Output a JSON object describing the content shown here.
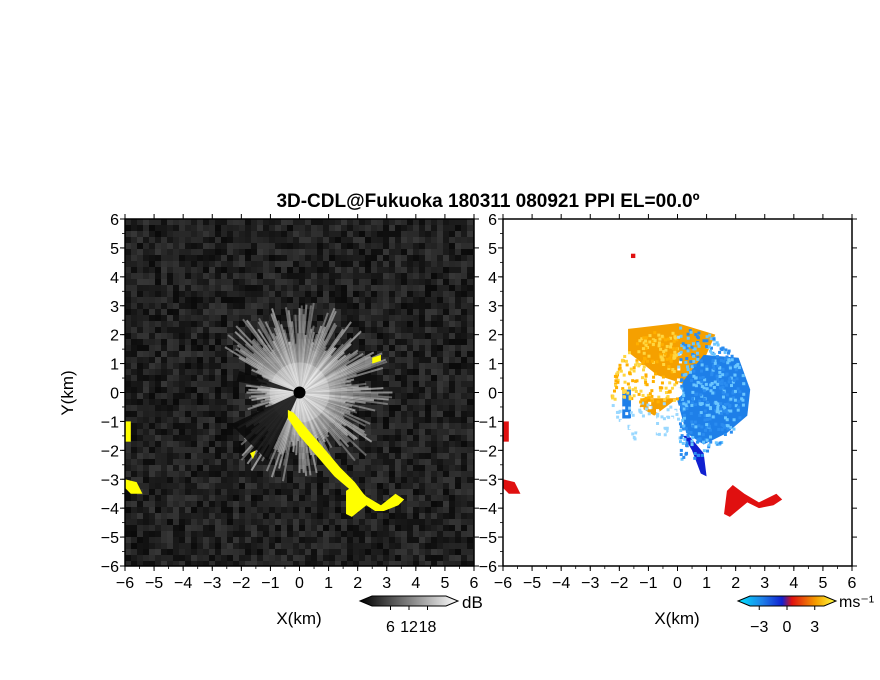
{
  "figure": {
    "title": "3D-CDL@Fukuoka 180311 080921 PPI EL=00.0º",
    "background": "#ffffff"
  },
  "chart_data": [
    {
      "type": "heatmap",
      "panel": "left",
      "quantity": "signal intensity",
      "xlabel": "X(km)",
      "ylabel": "Y(km)",
      "xlim": [
        -6,
        6
      ],
      "ylim": [
        -6,
        6
      ],
      "xticks": [
        -6,
        -5,
        -4,
        -3,
        -2,
        -1,
        0,
        1,
        2,
        3,
        4,
        5,
        6
      ],
      "yticks": [
        -6,
        -5,
        -4,
        -3,
        -2,
        -1,
        0,
        1,
        2,
        3,
        4,
        5,
        6
      ],
      "grid": false,
      "colors": {
        "background": "#1a1a1a",
        "highlight": "#ffff00",
        "center": "#000000"
      },
      "colorbar": {
        "unit": "dB",
        "ticks": [
          6,
          12,
          18
        ],
        "colormap": "grayscale",
        "placement": "bottom-right"
      },
      "highlight_regions": [
        {
          "name": "left-edge-upper",
          "points": [
            [
              -6.0,
              -1.0
            ],
            [
              -5.8,
              -1.0
            ],
            [
              -5.8,
              -1.7
            ],
            [
              -6.0,
              -1.7
            ]
          ]
        },
        {
          "name": "left-edge-lower",
          "points": [
            [
              -6.0,
              -3.0
            ],
            [
              -5.6,
              -3.1
            ],
            [
              -5.4,
              -3.5
            ],
            [
              -5.8,
              -3.5
            ],
            [
              -6.0,
              -3.3
            ]
          ]
        },
        {
          "name": "main-band",
          "points": [
            [
              -0.4,
              -0.6
            ],
            [
              -0.2,
              -0.7
            ],
            [
              0.3,
              -1.3
            ],
            [
              0.9,
              -2.0
            ],
            [
              1.4,
              -2.6
            ],
            [
              1.9,
              -3.1
            ],
            [
              2.2,
              -3.5
            ],
            [
              1.9,
              -3.5
            ],
            [
              1.2,
              -2.9
            ],
            [
              0.6,
              -2.2
            ],
            [
              0.0,
              -1.5
            ],
            [
              -0.4,
              -0.9
            ]
          ]
        },
        {
          "name": "lower-right-cluster",
          "points": [
            [
              1.6,
              -3.4
            ],
            [
              1.9,
              -3.2
            ],
            [
              2.3,
              -3.6
            ],
            [
              2.8,
              -3.9
            ],
            [
              3.3,
              -3.5
            ],
            [
              3.6,
              -3.7
            ],
            [
              3.4,
              -3.9
            ],
            [
              2.9,
              -4.1
            ],
            [
              2.6,
              -4.1
            ],
            [
              2.3,
              -3.9
            ],
            [
              1.8,
              -4.3
            ],
            [
              1.6,
              -4.2
            ]
          ]
        },
        {
          "name": "small-mark-left",
          "points": [
            [
              -1.7,
              -2.1
            ],
            [
              -1.5,
              -2.0
            ],
            [
              -1.6,
              -2.3
            ]
          ]
        },
        {
          "name": "small-mark-right",
          "points": [
            [
              2.5,
              1.2
            ],
            [
              2.8,
              1.3
            ],
            [
              2.8,
              1.1
            ],
            [
              2.5,
              1.0
            ]
          ]
        }
      ]
    },
    {
      "type": "heatmap",
      "panel": "right",
      "quantity": "radial velocity",
      "xlabel": "X(km)",
      "ylabel": "",
      "xlim": [
        -6,
        6
      ],
      "ylim": [
        -6,
        6
      ],
      "xticks": [
        -6,
        -5,
        -4,
        -3,
        -2,
        -1,
        0,
        1,
        2,
        3,
        4,
        5,
        6
      ],
      "yticks": [
        -6,
        -5,
        -4,
        -3,
        -2,
        -1,
        0,
        1,
        2,
        3,
        4,
        5,
        6
      ],
      "grid": false,
      "colors": {
        "toward": "#1e7fe8",
        "away": "#f5a000",
        "strong_toward": "#1020d0",
        "strong_away": "#e01010"
      },
      "colorbar": {
        "unit": "ms⁻¹",
        "ticks": [
          -3,
          0,
          3
        ],
        "colormap": "cyan-blue-red-orange-yellow",
        "placement": "bottom-right"
      },
      "velocity_regions": [
        {
          "sign": "away",
          "points": [
            [
              -1.7,
              2.2
            ],
            [
              0.0,
              2.4
            ],
            [
              1.3,
              2.0
            ],
            [
              0.9,
              1.1
            ],
            [
              0.2,
              0.3
            ],
            [
              -0.7,
              0.6
            ],
            [
              -1.7,
              1.4
            ]
          ]
        },
        {
          "sign": "away",
          "points": [
            [
              -1.2,
              -0.2
            ],
            [
              0.0,
              -0.2
            ],
            [
              -0.8,
              -0.8
            ],
            [
              -1.3,
              -0.5
            ]
          ]
        },
        {
          "sign": "toward",
          "points": [
            [
              0.9,
              1.3
            ],
            [
              2.1,
              1.2
            ],
            [
              2.5,
              0.1
            ],
            [
              2.4,
              -0.8
            ],
            [
              1.7,
              -1.4
            ],
            [
              0.9,
              -1.8
            ],
            [
              0.3,
              -1.4
            ],
            [
              0.0,
              -0.3
            ],
            [
              0.2,
              0.4
            ]
          ]
        },
        {
          "sign": "toward",
          "points": [
            [
              -1.9,
              0.1
            ],
            [
              -1.6,
              0.1
            ],
            [
              -1.6,
              -0.9
            ],
            [
              -1.9,
              -0.9
            ]
          ]
        },
        {
          "sign": "strong_away",
          "points": [
            [
              -6.0,
              -1.0
            ],
            [
              -5.8,
              -1.0
            ],
            [
              -5.8,
              -1.7
            ],
            [
              -6.0,
              -1.7
            ]
          ]
        },
        {
          "sign": "strong_away",
          "points": [
            [
              -6.0,
              -3.0
            ],
            [
              -5.6,
              -3.1
            ],
            [
              -5.4,
              -3.5
            ],
            [
              -5.8,
              -3.5
            ],
            [
              -6.0,
              -3.3
            ]
          ]
        },
        {
          "sign": "strong_away",
          "points": [
            [
              1.9,
              -3.2
            ],
            [
              2.3,
              -3.5
            ],
            [
              2.8,
              -3.8
            ],
            [
              3.4,
              -3.5
            ],
            [
              3.6,
              -3.7
            ],
            [
              3.3,
              -3.9
            ],
            [
              2.8,
              -4.0
            ],
            [
              2.4,
              -3.8
            ],
            [
              1.8,
              -4.3
            ],
            [
              1.6,
              -4.2
            ],
            [
              1.7,
              -3.4
            ]
          ]
        },
        {
          "sign": "strong_toward",
          "points": [
            [
              0.4,
              -1.5
            ],
            [
              0.9,
              -2.1
            ],
            [
              1.0,
              -2.9
            ],
            [
              0.8,
              -2.8
            ],
            [
              0.5,
              -2.0
            ],
            [
              0.2,
              -1.5
            ]
          ]
        },
        {
          "sign": "strong_away",
          "points": [
            [
              -1.6,
              4.8
            ],
            [
              -1.45,
              4.8
            ],
            [
              -1.45,
              4.65
            ],
            [
              -1.6,
              4.65
            ]
          ]
        }
      ]
    }
  ]
}
